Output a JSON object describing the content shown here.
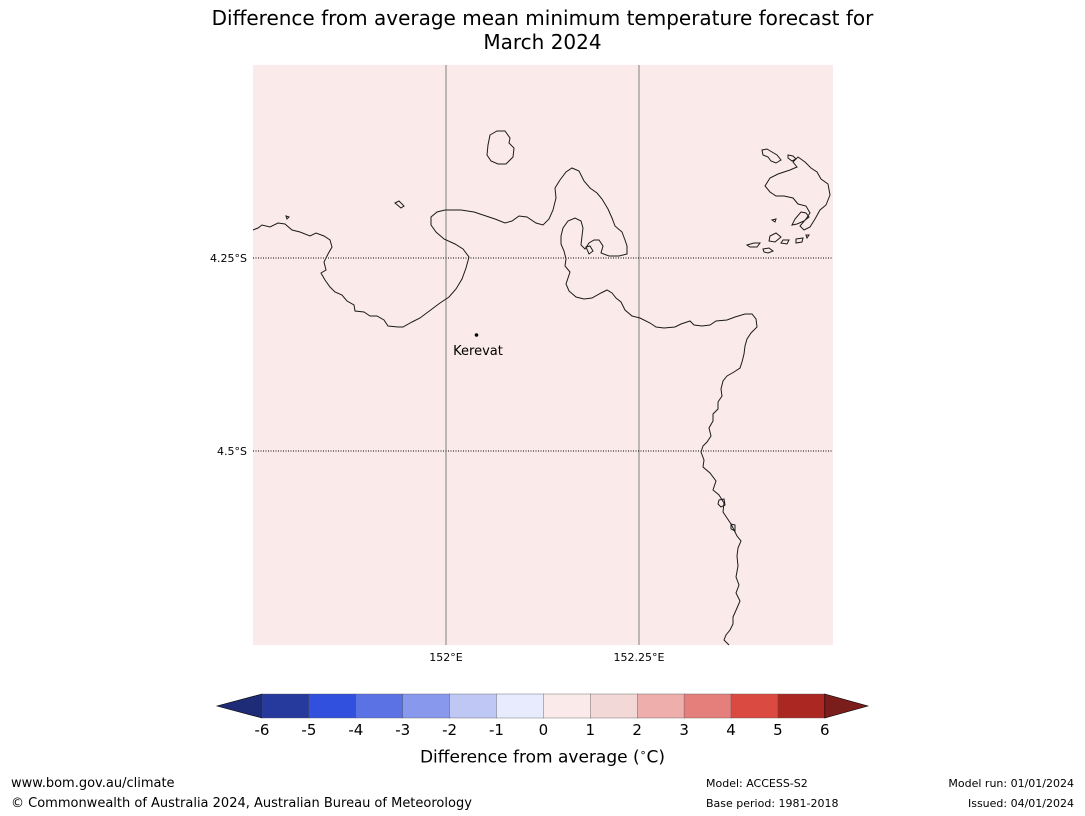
{
  "title": {
    "line1": "Difference from average mean minimum temperature forecast for",
    "line2": "March 2024"
  },
  "map": {
    "fill_color": "#fbeaea",
    "coast_color": "#000000",
    "graticule_color": "#808080",
    "lon_labels": [
      "152°E",
      "152.25°E"
    ],
    "lat_labels": [
      "4.25°S",
      "4.5°S"
    ],
    "places": [
      {
        "name": "Kerevat"
      }
    ]
  },
  "colorbar": {
    "ticks": [
      "-6",
      "-5",
      "-4",
      "-3",
      "-2",
      "-1",
      "0",
      "1",
      "2",
      "3",
      "4",
      "5",
      "6"
    ],
    "colors": [
      "#263a9e",
      "#3050dd",
      "#5b72e5",
      "#8898ec",
      "#bfc7f5",
      "#e8ebfd",
      "#fbeaea",
      "#f2d8d6",
      "#eeaeac",
      "#e47f7c",
      "#db4a40",
      "#aa2722"
    ],
    "under_color": "#1e2c78",
    "over_color": "#7b1d1a",
    "label": "Difference from average (",
    "label_unit": "C)",
    "degree_symbol": "∘"
  },
  "footer": {
    "url": "www.bom.gov.au/climate",
    "copyright": "© Commonwealth of Australia 2024, Australian Bureau of Meteorology",
    "model": "Model: ACCESS-S2",
    "base_period": "Base period: 1981-2018",
    "model_run": "Model run: 01/01/2024",
    "issued": "Issued: 04/01/2024"
  }
}
